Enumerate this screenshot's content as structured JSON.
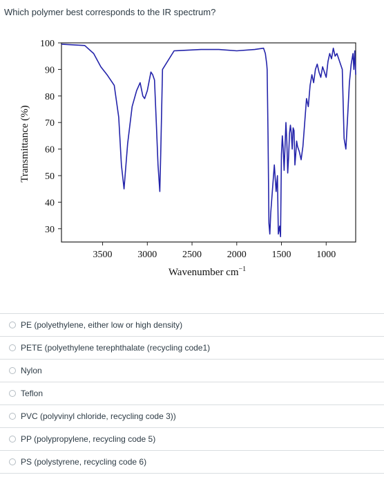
{
  "question": "Which polymer best corresponds to the IR spectrum?",
  "chart_data": {
    "type": "line",
    "title": "",
    "xlabel": "Wavenumber cm",
    "xlabel_sup": "−1",
    "ylabel": "Transmittance (%)",
    "xlim": [
      3960,
      670
    ],
    "ylim": [
      25,
      100
    ],
    "x_ticks": [
      3500,
      3000,
      2500,
      2000,
      1500,
      1000
    ],
    "y_ticks": [
      30,
      40,
      50,
      60,
      70,
      80,
      90,
      100
    ],
    "grid": false,
    "series": [
      {
        "name": "",
        "color": "#2323aa",
        "x": [
          3960,
          3700,
          3600,
          3520,
          3450,
          3370,
          3320,
          3290,
          3260,
          3220,
          3170,
          3120,
          3080,
          3050,
          3030,
          3000,
          2960,
          2940,
          2920,
          2900,
          2880,
          2860,
          2850,
          2830,
          2700,
          2400,
          2200,
          2000,
          1800,
          1700,
          1680,
          1665,
          1660,
          1650,
          1640,
          1630,
          1620,
          1600,
          1580,
          1560,
          1545,
          1535,
          1520,
          1510,
          1500,
          1490,
          1480,
          1470,
          1460,
          1450,
          1440,
          1430,
          1420,
          1410,
          1400,
          1390,
          1380,
          1370,
          1360,
          1350,
          1340,
          1330,
          1320,
          1300,
          1280,
          1260,
          1240,
          1220,
          1200,
          1180,
          1170,
          1160,
          1140,
          1120,
          1100,
          1080,
          1060,
          1040,
          1020,
          1000,
          980,
          960,
          940,
          920,
          900,
          880,
          860,
          840,
          820,
          800,
          780,
          760,
          740,
          720,
          700,
          690,
          680,
          670
        ],
        "y": [
          99.5,
          99,
          96,
          91,
          88,
          84,
          72,
          54,
          45,
          62,
          76,
          82,
          85,
          80,
          79,
          82,
          89,
          88,
          86,
          70,
          54,
          44,
          58,
          90,
          97,
          97.5,
          97.5,
          97,
          97.5,
          98,
          96,
          92,
          90,
          65,
          32,
          28,
          36,
          45,
          54,
          44,
          50,
          28,
          31,
          27,
          58,
          65,
          60,
          52,
          61,
          70,
          63,
          51,
          57,
          66,
          69,
          66,
          60,
          68,
          67,
          54,
          58,
          63,
          61,
          59,
          56,
          61,
          70,
          79,
          76,
          84,
          86,
          88,
          85,
          90,
          92,
          89,
          87,
          91,
          89,
          87,
          93,
          96,
          94,
          98,
          95,
          96,
          94,
          92,
          90,
          64,
          60,
          72,
          85,
          92,
          96,
          90,
          97,
          88
        ]
      }
    ]
  },
  "answers": [
    {
      "label": "PE (polyethylene, either low or high density)"
    },
    {
      "label": "PETE (polyethylene terephthalate (recycling code1)"
    },
    {
      "label": "Nylon"
    },
    {
      "label": "Teflon"
    },
    {
      "label": "PVC (polyvinyl chloride, recycling code 3))"
    },
    {
      "label": "PP (polypropylene, recycling code 5)"
    },
    {
      "label": "PS (polystyrene, recycling code 6)"
    }
  ]
}
